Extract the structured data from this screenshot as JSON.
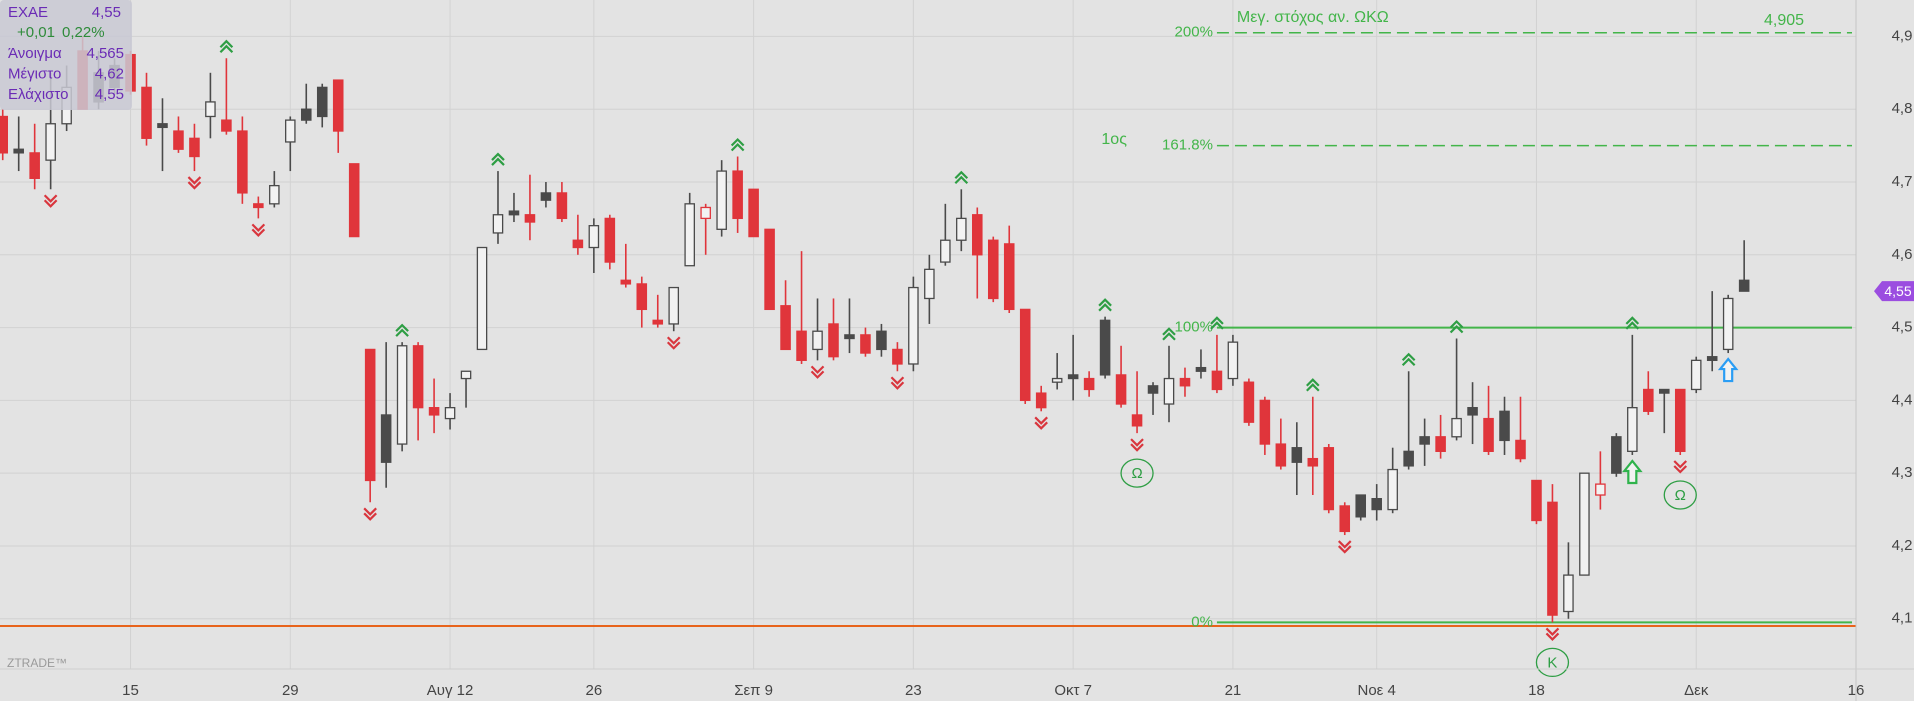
{
  "chart_data": {
    "type": "candlestick",
    "watermark": "ZTRADE™",
    "info": {
      "symbol": "EXAE",
      "last": "4,55",
      "change": "+0,01",
      "change_pct": "0,22%",
      "rows": [
        {
          "label": "Άνοιγμα",
          "value": "4,565"
        },
        {
          "label": "Μέγιστο",
          "value": "4,62"
        },
        {
          "label": "Ελάχιστο",
          "value": "4,55"
        }
      ]
    },
    "last_price": {
      "value": 4.55,
      "label": "4,55"
    },
    "x": [
      0,
      1,
      2,
      3,
      4,
      5,
      6,
      7,
      8,
      9,
      10,
      11,
      12,
      13,
      14,
      15,
      16,
      17,
      18,
      19,
      20,
      21,
      22,
      23,
      24,
      25,
      26,
      27,
      28,
      29,
      30,
      31,
      32,
      33,
      34,
      35,
      36,
      37,
      38,
      39,
      40,
      41,
      42,
      43,
      44,
      45,
      46,
      47,
      48,
      49,
      50,
      51,
      52,
      53,
      54,
      55,
      56,
      57,
      58,
      59,
      60,
      61,
      62,
      63,
      64,
      65,
      66,
      67,
      68,
      69,
      70,
      71,
      72,
      73,
      74,
      75,
      76,
      77,
      78,
      79,
      80,
      81,
      82,
      83,
      84,
      85,
      86,
      87,
      88,
      89,
      90,
      91,
      92,
      93,
      94,
      95,
      96,
      97,
      98,
      99,
      100,
      101,
      102,
      103,
      104,
      105,
      106,
      107,
      108,
      109
    ],
    "open": [
      4.79,
      4.745,
      4.74,
      4.73,
      4.78,
      4.88,
      4.85,
      4.86,
      4.875,
      4.83,
      4.78,
      4.77,
      4.76,
      4.79,
      4.785,
      4.77,
      4.67,
      4.67,
      4.755,
      4.8,
      4.83,
      4.84,
      4.725,
      4.47,
      4.38,
      4.34,
      4.475,
      4.39,
      4.375,
      4.43,
      4.47,
      4.63,
      4.66,
      4.655,
      4.685,
      4.685,
      4.62,
      4.61,
      4.65,
      4.565,
      4.56,
      4.51,
      4.505,
      4.585,
      4.65,
      4.635,
      4.715,
      4.69,
      4.635,
      4.53,
      4.495,
      4.47,
      4.505,
      4.49,
      4.49,
      4.495,
      4.47,
      4.45,
      4.54,
      4.59,
      4.62,
      4.655,
      4.62,
      4.615,
      4.525,
      4.41,
      4.425,
      4.435,
      4.43,
      4.51,
      4.435,
      4.38,
      4.42,
      4.395,
      4.43,
      4.445,
      4.44,
      4.43,
      4.425,
      4.4,
      4.34,
      4.335,
      4.32,
      4.335,
      4.255,
      4.27,
      4.265,
      4.25,
      4.33,
      4.35,
      4.35,
      4.35,
      4.39,
      4.375,
      4.385,
      4.345,
      4.29,
      4.26,
      4.11,
      4.16,
      4.27,
      4.35,
      4.33,
      4.415,
      4.415,
      4.415,
      4.415,
      4.46,
      4.47,
      4.565
    ],
    "high": [
      4.8,
      4.79,
      4.78,
      4.85,
      4.86,
      4.9,
      4.88,
      4.87,
      4.88,
      4.85,
      4.815,
      4.79,
      4.78,
      4.85,
      4.87,
      4.79,
      4.68,
      4.715,
      4.79,
      4.835,
      4.835,
      4.84,
      4.725,
      4.47,
      4.48,
      4.48,
      4.48,
      4.43,
      4.41,
      4.44,
      4.61,
      4.715,
      4.685,
      4.71,
      4.7,
      4.7,
      4.655,
      4.65,
      4.655,
      4.615,
      4.57,
      4.545,
      4.555,
      4.685,
      4.67,
      4.73,
      4.735,
      4.69,
      4.635,
      4.565,
      4.605,
      4.54,
      4.54,
      4.54,
      4.5,
      4.505,
      4.48,
      4.57,
      4.6,
      4.67,
      4.69,
      4.665,
      4.625,
      4.64,
      4.525,
      4.42,
      4.465,
      4.49,
      4.44,
      4.515,
      4.475,
      4.44,
      4.425,
      4.475,
      4.445,
      4.47,
      4.49,
      4.49,
      4.43,
      4.405,
      4.375,
      4.37,
      4.405,
      4.34,
      4.26,
      4.27,
      4.285,
      4.335,
      4.44,
      4.375,
      4.38,
      4.485,
      4.425,
      4.42,
      4.405,
      4.405,
      4.29,
      4.285,
      4.205,
      4.3,
      4.33,
      4.355,
      4.49,
      4.44,
      4.415,
      4.415,
      4.46,
      4.55,
      4.545,
      4.62
    ],
    "low": [
      4.73,
      4.715,
      4.69,
      4.69,
      4.77,
      4.8,
      4.8,
      4.82,
      4.82,
      4.75,
      4.715,
      4.74,
      4.715,
      4.76,
      4.765,
      4.67,
      4.65,
      4.665,
      4.715,
      4.78,
      4.775,
      4.74,
      4.625,
      4.26,
      4.28,
      4.33,
      4.345,
      4.355,
      4.36,
      4.39,
      4.47,
      4.615,
      4.645,
      4.62,
      4.665,
      4.645,
      4.6,
      4.575,
      4.58,
      4.555,
      4.5,
      4.5,
      4.495,
      4.585,
      4.6,
      4.625,
      4.63,
      4.625,
      4.525,
      4.47,
      4.45,
      4.455,
      4.455,
      4.465,
      4.46,
      4.46,
      4.44,
      4.44,
      4.505,
      4.585,
      4.605,
      4.54,
      4.535,
      4.52,
      4.395,
      4.385,
      4.415,
      4.4,
      4.405,
      4.43,
      4.39,
      4.355,
      4.38,
      4.37,
      4.405,
      4.43,
      4.41,
      4.42,
      4.365,
      4.325,
      4.305,
      4.27,
      4.27,
      4.245,
      4.215,
      4.235,
      4.235,
      4.245,
      4.305,
      4.31,
      4.32,
      4.345,
      4.34,
      4.325,
      4.325,
      4.315,
      4.23,
      4.095,
      4.1,
      4.16,
      4.25,
      4.295,
      4.325,
      4.38,
      4.355,
      4.325,
      4.41,
      4.44,
      4.465,
      4.55
    ],
    "close": [
      4.74,
      4.74,
      4.705,
      4.78,
      4.83,
      4.8,
      4.81,
      4.83,
      4.825,
      4.76,
      4.775,
      4.745,
      4.735,
      4.81,
      4.77,
      4.685,
      4.665,
      4.695,
      4.785,
      4.785,
      4.79,
      4.77,
      4.625,
      4.29,
      4.315,
      4.475,
      4.39,
      4.38,
      4.39,
      4.44,
      4.61,
      4.655,
      4.655,
      4.645,
      4.675,
      4.65,
      4.61,
      4.64,
      4.59,
      4.56,
      4.525,
      4.505,
      4.555,
      4.67,
      4.665,
      4.715,
      4.65,
      4.625,
      4.525,
      4.47,
      4.455,
      4.495,
      4.46,
      4.485,
      4.465,
      4.47,
      4.45,
      4.555,
      4.58,
      4.62,
      4.65,
      4.6,
      4.54,
      4.525,
      4.4,
      4.39,
      4.43,
      4.43,
      4.415,
      4.435,
      4.395,
      4.365,
      4.41,
      4.43,
      4.42,
      4.44,
      4.415,
      4.48,
      4.37,
      4.34,
      4.31,
      4.315,
      4.31,
      4.25,
      4.22,
      4.24,
      4.25,
      4.305,
      4.31,
      4.34,
      4.33,
      4.375,
      4.38,
      4.33,
      4.345,
      4.32,
      4.235,
      4.105,
      4.16,
      4.3,
      4.285,
      4.3,
      4.39,
      4.385,
      4.41,
      4.33,
      4.455,
      4.455,
      4.54,
      4.55
    ],
    "up_color": "#4a4a4a",
    "down_color": "#e0353b",
    "peaks": [
      14,
      25,
      31,
      46,
      60,
      69,
      73,
      76,
      82,
      88,
      91,
      102
    ],
    "peak_color": "#2e9e44",
    "troughs": [
      3,
      12,
      16,
      23,
      42,
      51,
      56,
      65,
      71,
      84,
      97,
      105
    ],
    "trough_color": "#d9363e",
    "annotations": [
      {
        "x": 71,
        "label": "Ω"
      },
      {
        "x": 97,
        "label": "K"
      },
      {
        "x": 105,
        "label": "Ω"
      }
    ],
    "signals": [
      {
        "x": 102,
        "color": "#2fb34c"
      },
      {
        "x": 108,
        "color": "#2a9df4"
      }
    ],
    "fibonacci": {
      "x_start": 76,
      "color": "#43b54a",
      "levels": [
        {
          "value": 4.905,
          "label": "200%",
          "style": "dashed",
          "note": "Μεγ. στόχος αν. ΩΚΩ",
          "price_label": "4,905"
        },
        {
          "value": 4.75,
          "label": "161.8%",
          "style": "dashed",
          "note": "1ος"
        },
        {
          "value": 4.5,
          "label": "100%",
          "style": "solid"
        },
        {
          "value": 4.095,
          "label": "0%",
          "style": "solid"
        }
      ]
    },
    "support": {
      "value": 4.09,
      "color": "#e8641c"
    },
    "xlim": [
      -0.17,
      116
    ],
    "xticks": [
      {
        "value": 8,
        "label": "15"
      },
      {
        "value": 18,
        "label": "29"
      },
      {
        "value": 28,
        "label": "Αυγ 12"
      },
      {
        "value": 37,
        "label": "26"
      },
      {
        "value": 47,
        "label": "Σεπ 9"
      },
      {
        "value": 57,
        "label": "23"
      },
      {
        "value": 67,
        "label": "Οκτ 7"
      },
      {
        "value": 77,
        "label": "21"
      },
      {
        "value": 86,
        "label": "Νοε 4"
      },
      {
        "value": 96,
        "label": "18"
      },
      {
        "value": 106,
        "label": "Δεκ"
      },
      {
        "value": 116,
        "label": "16"
      }
    ],
    "ylim": [
      4.031,
      4.95
    ],
    "yticks": [
      {
        "value": 4.1,
        "label": "4,1"
      },
      {
        "value": 4.2,
        "label": "4,2"
      },
      {
        "value": 4.3,
        "label": "4,3"
      },
      {
        "value": 4.4,
        "label": "4,4"
      },
      {
        "value": 4.5,
        "label": "4,5"
      },
      {
        "value": 4.6,
        "label": "4,6"
      },
      {
        "value": 4.7,
        "label": "4,7"
      },
      {
        "value": 4.8,
        "label": "4,8"
      },
      {
        "value": 4.9,
        "label": "4,9"
      }
    ],
    "grid": true
  }
}
